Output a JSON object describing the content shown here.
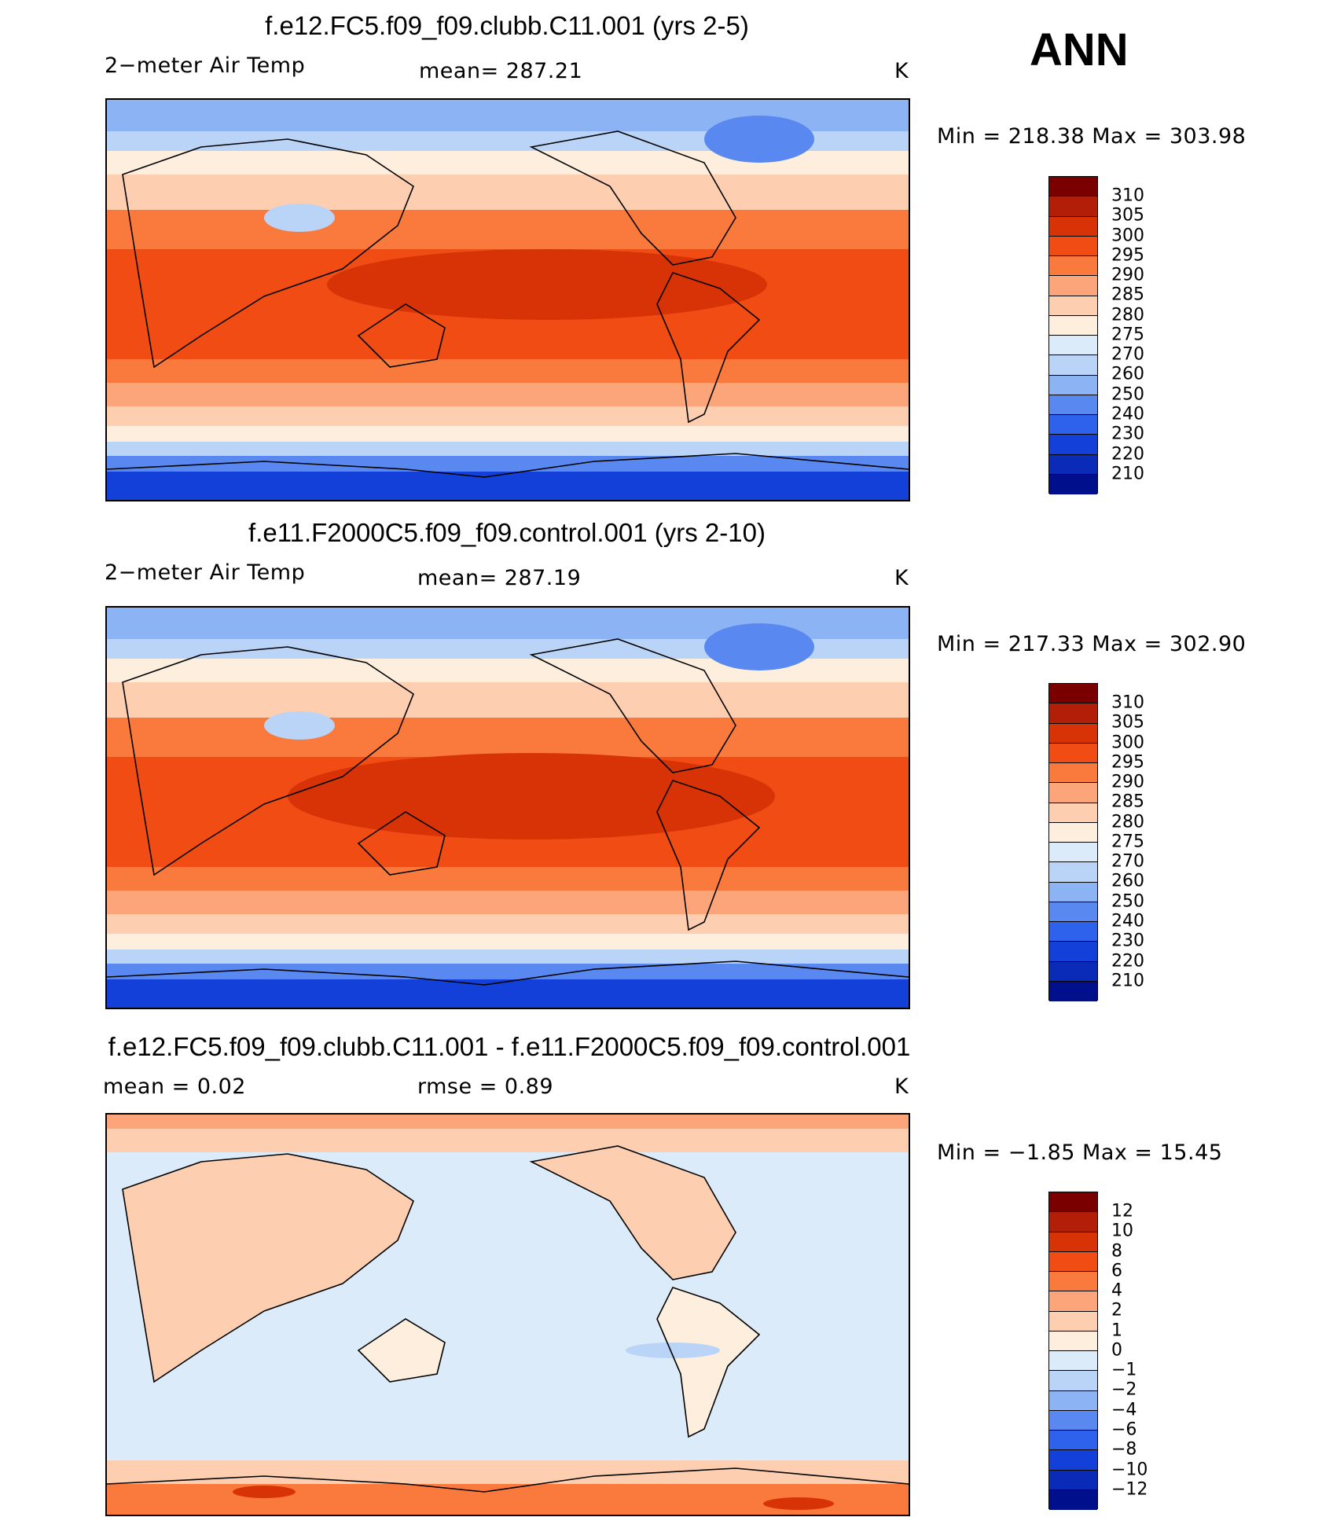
{
  "season": "ANN",
  "chart_data": [
    {
      "type": "heatmap",
      "title": "f.e12.FC5.f09_f09.clubb.C11.001 (yrs 2-5)",
      "variable": "2−meter Air Temp",
      "stat": "mean=  287.21",
      "units": "K",
      "minmax": "Min  =  218.38  Max  =  303.98",
      "min": 218.38,
      "max": 303.98,
      "mean": 287.21,
      "colorbar": {
        "ticks": [
          "310",
          "305",
          "300",
          "295",
          "290",
          "285",
          "280",
          "275",
          "270",
          "260",
          "250",
          "240",
          "230",
          "220",
          "210"
        ],
        "colors": [
          "#7a0000",
          "#b31e08",
          "#d83306",
          "#f04c14",
          "#fa7a3d",
          "#fca57a",
          "#fdcfb0",
          "#fdeede",
          "#dcebfa",
          "#b9d4f6",
          "#8cb3f3",
          "#5989f0",
          "#2f62ec",
          "#1340d9",
          "#0a2bb8",
          "#00108c"
        ]
      }
    },
    {
      "type": "heatmap",
      "title": "f.e11.F2000C5.f09_f09.control.001 (yrs 2-10)",
      "variable": "2−meter Air Temp",
      "stat": "mean=  287.19",
      "units": "K",
      "minmax": "Min  =  217.33  Max  =  302.90",
      "min": 217.33,
      "max": 302.9,
      "mean": 287.19,
      "colorbar": {
        "ticks": [
          "310",
          "305",
          "300",
          "295",
          "290",
          "285",
          "280",
          "275",
          "270",
          "260",
          "250",
          "240",
          "230",
          "220",
          "210"
        ],
        "colors": [
          "#7a0000",
          "#b31e08",
          "#d83306",
          "#f04c14",
          "#fa7a3d",
          "#fca57a",
          "#fdcfb0",
          "#fdeede",
          "#dcebfa",
          "#b9d4f6",
          "#8cb3f3",
          "#5989f0",
          "#2f62ec",
          "#1340d9",
          "#0a2bb8",
          "#00108c"
        ]
      }
    },
    {
      "type": "heatmap",
      "title": "f.e12.FC5.f09_f09.clubb.C11.001 - f.e11.F2000C5.f09_f09.control.001",
      "stat": "mean =     0.02",
      "stat2": "rmse =     0.89",
      "units": "K",
      "minmax": "Min  =   −1.85  Max  =    15.45",
      "min": -1.85,
      "max": 15.45,
      "mean": 0.02,
      "rmse": 0.89,
      "colorbar": {
        "ticks": [
          "12",
          "10",
          "8",
          "6",
          "4",
          "2",
          "1",
          "0",
          "−1",
          "−2",
          "−4",
          "−6",
          "−8",
          "−10",
          "−12"
        ],
        "colors": [
          "#7a0000",
          "#b31e08",
          "#d83306",
          "#f04c14",
          "#fa7a3d",
          "#fca57a",
          "#fdcfb0",
          "#fdeede",
          "#dcebfa",
          "#b9d4f6",
          "#8cb3f3",
          "#5989f0",
          "#2f62ec",
          "#1340d9",
          "#0a2bb8",
          "#00108c"
        ]
      }
    }
  ]
}
